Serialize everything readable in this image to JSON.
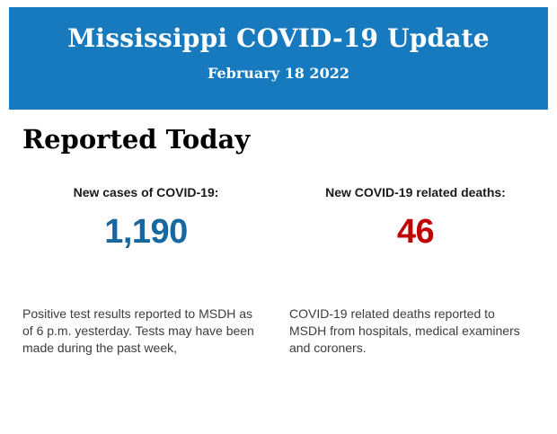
{
  "colors": {
    "banner_blue": "#1779BE",
    "cases_blue": "#17689E",
    "deaths_red": "#C00505",
    "label_black": "#1A1A1A",
    "text_dark": "#3C3C3C"
  },
  "banner": {
    "title": "Mississippi COVID-19 Update",
    "date": "February 18 2022"
  },
  "section": {
    "title": "Reported Today"
  },
  "stats": {
    "cases": {
      "label": "New cases of COVID-19:",
      "value": "1,190",
      "description_lines": [
        "Positive test results reported to MSDH as",
        "of 6 p.m. yesterday. Tests may have been",
        "made during the past week,"
      ]
    },
    "deaths": {
      "label": "New COVID-19 related deaths:",
      "value": "46",
      "description_lines": [
        "COVID-19 related deaths reported to",
        "MSDH from hospitals, medical examiners",
        "and coroners."
      ]
    }
  }
}
